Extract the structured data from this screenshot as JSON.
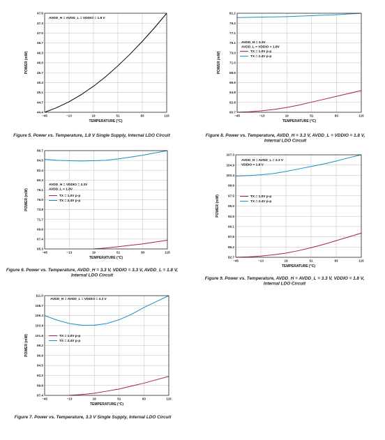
{
  "colors": {
    "tx1": "#a2214f",
    "tx24": "#1a8cc8",
    "single": "#000000",
    "grid": "#bdbdbd",
    "frame": "#222222"
  },
  "chart_data": [
    {
      "id": "fig5",
      "type": "line",
      "caption": "Figure 5. Power vs. Temperature, 1.8 V Single Supply, Internal LDO Circuit",
      "xlabel": "TEMPERATURE (°C)",
      "ylabel": "POWER (mW)",
      "xlim": [
        -45,
        115
      ],
      "ylim": [
        44.4,
        47.6
      ],
      "xticks": [
        "−45",
        "−13",
        "19",
        "51",
        "83",
        "115"
      ],
      "yticks": [
        "44.4",
        "44.7",
        "45.1",
        "45.4",
        "45.7",
        "46.0",
        "46.3",
        "46.7",
        "47.0",
        "47.3",
        "47.6"
      ],
      "grid": true,
      "annotations": [
        "AVDD_H = AVDD_L = VDDIO = 1.8 V"
      ],
      "fig_id": "",
      "series": [
        {
          "name": "",
          "color": "#000000",
          "x": [
            -45,
            -29,
            -13,
            3,
            19,
            35,
            51,
            67,
            83,
            99,
            115
          ],
          "y": [
            44.4,
            44.55,
            44.74,
            44.97,
            45.24,
            45.55,
            45.9,
            46.28,
            46.69,
            47.13,
            47.6
          ]
        }
      ]
    },
    {
      "id": "fig6",
      "type": "line",
      "caption": "Figure 6. Power vs. Temperature, AVDD_H = 3.3 V, VDDIO = 3.3 V, AVDD_L = 1.8 V, Internal LDO Circuit",
      "xlabel": "TEMPERATURE (°C)",
      "ylabel": "POWER (mW)",
      "xlim": [
        -45,
        115
      ],
      "ylim": [
        65.3,
        86.7
      ],
      "xticks": [
        "−45",
        "−13",
        "19",
        "51",
        "83",
        "115"
      ],
      "yticks": [
        "65.3",
        "67.4",
        "69.6",
        "71.7",
        "73.8",
        "76.0",
        "78.1",
        "80.3",
        "82.4",
        "84.5",
        "86.7"
      ],
      "grid": true,
      "annotations": [
        "AVDD_H = VDDIO = 3.3V",
        "AVDD_L = 1.8V"
      ],
      "fig_id": "",
      "legend": [
        {
          "label": "TX = 1.0V p-p",
          "color": "#a2214f"
        },
        {
          "label": "TX = 2.4V p-p",
          "color": "#1a8cc8"
        }
      ],
      "series": [
        {
          "name": "TX = 1.0V p-p",
          "color": "#a2214f",
          "x": [
            19,
            35,
            51,
            67,
            83,
            99,
            115
          ],
          "y": [
            65.3,
            65.5,
            65.8,
            66.1,
            66.4,
            66.8,
            67.2
          ]
        },
        {
          "name": "TX = 2.4V p-p",
          "color": "#1a8cc8",
          "x": [
            -45,
            -29,
            -13,
            3,
            19,
            35,
            51,
            67,
            83,
            99,
            115
          ],
          "y": [
            84.8,
            84.6,
            84.5,
            84.45,
            84.5,
            84.6,
            84.9,
            85.3,
            85.7,
            86.2,
            86.7
          ]
        }
      ]
    },
    {
      "id": "fig7",
      "type": "line",
      "caption": "Figure 7. Power vs. Temperature, 3.3 V Single Supply, Internal LDO Circuit",
      "xlabel": "TEMPERATURE (°C)",
      "ylabel": "POWER (mW)",
      "xlim": [
        -45,
        115
      ],
      "ylim": [
        87.4,
        111.0
      ],
      "xticks": [
        "−45",
        "−13",
        "19",
        "51",
        "83",
        "115"
      ],
      "yticks": [
        "87.4",
        "89.8",
        "92.2",
        "94.5",
        "96.9",
        "99.2",
        "101.6",
        "103.9",
        "106.3",
        "108.7",
        "111.0"
      ],
      "grid": true,
      "annotations": [
        "AVDD_H = AVDD_L = VDDIO = 3.3 V"
      ],
      "fig_id": "",
      "legend": [
        {
          "label": "TX = 1.0V p-p",
          "color": "#a2214f"
        },
        {
          "label": "TX = 2.4V p-p",
          "color": "#1a8cc8"
        }
      ],
      "series": [
        {
          "name": "TX = 1.0V p-p",
          "color": "#a2214f",
          "x": [
            -13,
            3,
            19,
            35,
            51,
            67,
            83,
            99,
            115
          ],
          "y": [
            87.4,
            87.6,
            87.9,
            88.4,
            88.9,
            89.6,
            90.3,
            91.1,
            91.9
          ]
        },
        {
          "name": "TX = 2.4V p-p",
          "color": "#1a8cc8",
          "x": [
            -45,
            -29,
            -13,
            3,
            19,
            35,
            51,
            67,
            83,
            99,
            115
          ],
          "y": [
            106.3,
            105.2,
            104.4,
            104.0,
            104.0,
            104.4,
            105.3,
            106.6,
            108.2,
            109.6,
            111.0
          ]
        }
      ]
    },
    {
      "id": "fig8",
      "type": "line",
      "caption": "Figure 8. Power vs. Temperature, AVDD_H = 3.3 V, AVDD_L = VDDIO = 1.8 V, Internal LDO Circuit",
      "xlabel": "TEMPERATURE (°C)",
      "ylabel": "POWER (mW)",
      "xlim": [
        -45,
        115
      ],
      "ylim": [
        60.7,
        81.2
      ],
      "xticks": [
        "−45",
        "−13",
        "19",
        "51",
        "83",
        "115"
      ],
      "yticks": [
        "60.7",
        "62.8",
        "64.8",
        "66.9",
        "68.9",
        "71.0",
        "73.0",
        "75.1",
        "77.1",
        "79.2",
        "81.2"
      ],
      "grid": true,
      "annotations": [
        "AVDD_H = 3.3V",
        "AVDD_L = VDDIO = 1.8V"
      ],
      "fig_id": "",
      "legend": [
        {
          "label": "TX = 1.0V p-p",
          "color": "#a2214f"
        },
        {
          "label": "TX = 2.4V p-p",
          "color": "#1a8cc8"
        }
      ],
      "series": [
        {
          "name": "TX = 1.0V p-p",
          "color": "#a2214f",
          "x": [
            -45,
            -29,
            -13,
            3,
            19,
            35,
            51,
            67,
            83,
            99,
            115
          ],
          "y": [
            60.7,
            60.8,
            61.0,
            61.3,
            61.7,
            62.2,
            62.8,
            63.4,
            64.0,
            64.6,
            65.2
          ]
        },
        {
          "name": "TX = 2.4V p-p",
          "color": "#1a8cc8",
          "x": [
            -45,
            -29,
            -13,
            3,
            19,
            35,
            51,
            67,
            83,
            99,
            115
          ],
          "y": [
            80.3,
            80.35,
            80.4,
            80.45,
            80.5,
            80.6,
            80.7,
            80.8,
            80.9,
            81.05,
            81.2
          ]
        }
      ]
    },
    {
      "id": "fig9",
      "type": "line",
      "caption": "Figure 9. Power vs. Temperature, AVDD_H = AVDD_L = 3.3 V, VDDIO = 1.8 V, Internal LDO Circuit",
      "xlabel": "TEMPERATURE (°C)",
      "ylabel": "POWER (mW)",
      "xlim": [
        -45,
        115
      ],
      "ylim": [
        82.7,
        107.3
      ],
      "xticks": [
        "−45",
        "−13",
        "19",
        "51",
        "83",
        "115"
      ],
      "yticks": [
        "82.7",
        "85.2",
        "87.6",
        "90.1",
        "92.6",
        "95.0",
        "97.5",
        "99.9",
        "102.4",
        "104.9",
        "107.3"
      ],
      "grid": true,
      "annotations": [
        "AVDD_H = AVDD_L = 3.3 V",
        "VDDIO = 1.8 V"
      ],
      "fig_id": "",
      "legend": [
        {
          "label": "TX = 1.0V p-p",
          "color": "#a2214f"
        },
        {
          "label": "TX = 2.4V p-p",
          "color": "#1a8cc8"
        }
      ],
      "series": [
        {
          "name": "TX = 1.0V p-p",
          "color": "#a2214f",
          "x": [
            -45,
            -29,
            -13,
            3,
            19,
            35,
            51,
            67,
            83,
            99,
            115
          ],
          "y": [
            82.7,
            82.8,
            83.0,
            83.3,
            83.7,
            84.3,
            85.0,
            85.8,
            86.7,
            87.6,
            88.5
          ]
        },
        {
          "name": "TX = 2.4V p-p",
          "color": "#1a8cc8",
          "x": [
            -45,
            -29,
            -13,
            3,
            19,
            35,
            51,
            67,
            83,
            99,
            115
          ],
          "y": [
            102.2,
            102.3,
            102.5,
            102.8,
            103.3,
            103.9,
            104.5,
            105.1,
            105.8,
            106.6,
            107.3
          ]
        }
      ]
    }
  ]
}
